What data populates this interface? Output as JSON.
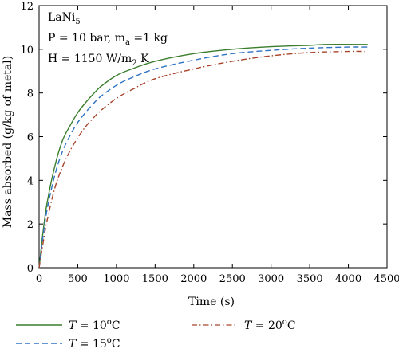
{
  "chart_data": {
    "type": "line",
    "title": "",
    "xlabel": "Time (s)",
    "ylabel": "Mass absorbed (g/kg of metal)",
    "xlim": [
      0,
      4500
    ],
    "ylim": [
      0,
      12
    ],
    "x_ticks": [
      "0",
      "500",
      "1000",
      "1500",
      "2000",
      "2500",
      "3000",
      "3500",
      "4000",
      "4500"
    ],
    "y_ticks": [
      "0",
      "2",
      "4",
      "6",
      "8",
      "10",
      "12"
    ],
    "grid": false,
    "legend_position": "bottom",
    "annotations": {
      "line1": {
        "main": "LaNi",
        "sub": "5"
      },
      "line2": {
        "pre": "P = 10 bar, m",
        "sub": "a",
        "post": " =1 kg"
      },
      "line3": {
        "pre": "H = 1150 W/m",
        "sub": "2",
        "post": " K"
      }
    },
    "series": [
      {
        "name": "T = 10oC",
        "label_var": "T",
        "label_eq": " = 10",
        "label_sup": "o",
        "label_unit": "C",
        "color": "#3a7d2c",
        "dash": "solid",
        "points": [
          [
            0,
            0
          ],
          [
            50,
            1.6
          ],
          [
            100,
            2.9
          ],
          [
            200,
            4.6
          ],
          [
            300,
            5.8
          ],
          [
            400,
            6.5
          ],
          [
            500,
            7.1
          ],
          [
            600,
            7.55
          ],
          [
            700,
            7.95
          ],
          [
            800,
            8.3
          ],
          [
            1000,
            8.8
          ],
          [
            1200,
            9.1
          ],
          [
            1500,
            9.45
          ],
          [
            2000,
            9.8
          ],
          [
            2500,
            10.0
          ],
          [
            3000,
            10.12
          ],
          [
            3500,
            10.18
          ],
          [
            3700,
            10.22
          ],
          [
            4250,
            10.22
          ]
        ]
      },
      {
        "name": "T = 15oC",
        "label_var": "T",
        "label_eq": " = 15",
        "label_sup": "o",
        "label_unit": "C",
        "color": "#2e73c4",
        "dash": "dashed",
        "points": [
          [
            0,
            0
          ],
          [
            50,
            1.4
          ],
          [
            100,
            2.6
          ],
          [
            200,
            4.2
          ],
          [
            300,
            5.3
          ],
          [
            400,
            6.05
          ],
          [
            500,
            6.65
          ],
          [
            600,
            7.1
          ],
          [
            700,
            7.5
          ],
          [
            800,
            7.85
          ],
          [
            1000,
            8.35
          ],
          [
            1200,
            8.7
          ],
          [
            1500,
            9.1
          ],
          [
            2000,
            9.5
          ],
          [
            2500,
            9.8
          ],
          [
            3000,
            9.95
          ],
          [
            3500,
            10.05
          ],
          [
            4000,
            10.1
          ],
          [
            4250,
            10.1
          ]
        ]
      },
      {
        "name": "T = 20oC",
        "label_var": "T",
        "label_eq": " = 20",
        "label_sup": "o",
        "label_unit": "C",
        "color": "#a8442a",
        "dash": "dashdot",
        "points": [
          [
            0,
            0
          ],
          [
            50,
            1.1
          ],
          [
            100,
            2.1
          ],
          [
            200,
            3.6
          ],
          [
            300,
            4.6
          ],
          [
            400,
            5.35
          ],
          [
            500,
            5.95
          ],
          [
            600,
            6.45
          ],
          [
            700,
            6.85
          ],
          [
            800,
            7.2
          ],
          [
            1000,
            7.75
          ],
          [
            1200,
            8.15
          ],
          [
            1500,
            8.65
          ],
          [
            2000,
            9.1
          ],
          [
            2500,
            9.45
          ],
          [
            3000,
            9.7
          ],
          [
            3500,
            9.85
          ],
          [
            4000,
            9.9
          ],
          [
            4250,
            9.9
          ]
        ]
      }
    ]
  }
}
